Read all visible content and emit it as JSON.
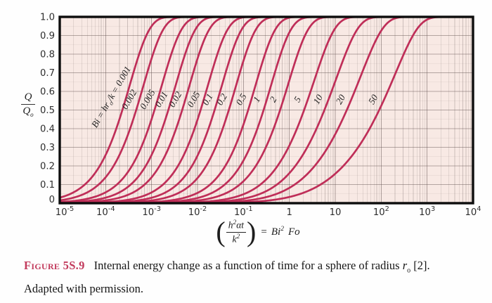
{
  "figure": {
    "caption": {
      "figure_label": "Figure 5S.9",
      "body1": "Internal energy change as a function of time for a sphere of radius ",
      "body_r": "r",
      "body_r_sub": "o",
      "body2": " [2].",
      "line2": "Adapted with permission."
    }
  },
  "chart_data": {
    "type": "line",
    "model": "Transient conduction in a sphere: Q/Qo versus Bi^2*Fo, one curve per Biot number (eigenfunction series solution)",
    "grid": "on",
    "legend_position": "labels-on-curves",
    "x_axis": {
      "scale": "log",
      "min": 1e-05,
      "max": 10000.0,
      "ticks": [
        {
          "t": "10",
          "e": "-5",
          "lg": -5
        },
        {
          "t": "10",
          "e": "-4",
          "lg": -4
        },
        {
          "t": "10",
          "e": "-3",
          "lg": -3
        },
        {
          "t": "10",
          "e": "-2",
          "lg": -2
        },
        {
          "t": "10",
          "e": "-1",
          "lg": -1
        },
        {
          "t": "1",
          "lg": 0
        },
        {
          "t": "10",
          "lg": 1
        },
        {
          "t": "10",
          "e": "2",
          "lg": 2
        },
        {
          "t": "10",
          "e": "3",
          "lg": 3
        },
        {
          "t": "10",
          "e": "4",
          "lg": 4
        }
      ],
      "label_parts": {
        "open": "(",
        "num_h": "h",
        "num_sup": "2",
        "num_rest": "αt",
        "den_k": "k",
        "den_sup": "2",
        "close": ")",
        "eq": "=",
        "bi": "Bi",
        "bi_sup": "2",
        "fo": "Fo"
      }
    },
    "y_axis": {
      "min": 0,
      "max": 1,
      "grid_step": 0.05,
      "label_parts": {
        "num": "Q",
        "den": "Q",
        "den_sub": "o"
      },
      "ticks": [
        {
          "t": "1.0",
          "v": 1.0
        },
        {
          "t": "0.9",
          "v": 0.9
        },
        {
          "t": "0.8",
          "v": 0.8
        },
        {
          "t": "0.7",
          "v": 0.7
        },
        {
          "t": "0.6",
          "v": 0.6
        },
        {
          "t": "0.5",
          "v": 0.5
        },
        {
          "t": "0.4",
          "v": 0.4
        },
        {
          "t": "0.3",
          "v": 0.3
        },
        {
          "t": "0.2",
          "v": 0.2
        },
        {
          "t": "0.1",
          "v": 0.1
        },
        {
          "t": "0",
          "v": 0
        }
      ]
    },
    "first_curve_label_parts": {
      "p1": "Bi = hr",
      "sub": "o",
      "p2": "/k = 0.001"
    },
    "series": [
      {
        "bi": 0.001,
        "label": "0.001",
        "x_at_half_rise": 0.00023
      },
      {
        "bi": 0.002,
        "label": "0.002",
        "x_at_half_rise": 0.00046
      },
      {
        "bi": 0.005,
        "label": "0.005",
        "x_at_half_rise": 0.0012
      },
      {
        "bi": 0.01,
        "label": "0.01",
        "x_at_half_rise": 0.0023
      },
      {
        "bi": 0.02,
        "label": "0.02",
        "x_at_half_rise": 0.0046
      },
      {
        "bi": 0.05,
        "label": "0.05",
        "x_at_half_rise": 0.012
      },
      {
        "bi": 0.1,
        "label": "0.1",
        "x_at_half_rise": 0.024
      },
      {
        "bi": 0.2,
        "label": "0.2",
        "x_at_half_rise": 0.048
      },
      {
        "bi": 0.5,
        "label": "0.5",
        "x_at_half_rise": 0.126
      },
      {
        "bi": 1,
        "label": "1",
        "x_at_half_rise": 0.275
      },
      {
        "bi": 2,
        "label": "2",
        "x_at_half_rise": 0.63
      },
      {
        "bi": 5,
        "label": "5",
        "x_at_half_rise": 2.0
      },
      {
        "bi": 10,
        "label": "10",
        "x_at_half_rise": 5.2
      },
      {
        "bi": 20,
        "label": "20",
        "x_at_half_rise": 15
      },
      {
        "bi": 50,
        "label": "50",
        "x_at_half_rise": 66
      }
    ],
    "colors": {
      "curve": "#bf2e58",
      "plot_bg": "#f8e9e4",
      "grid": "#5f504e",
      "border": "#0d0d0d",
      "tick_text": "#2d2d2d",
      "curve_label_text": "#1f1f1f",
      "figure_label": "#c23a5c"
    }
  }
}
